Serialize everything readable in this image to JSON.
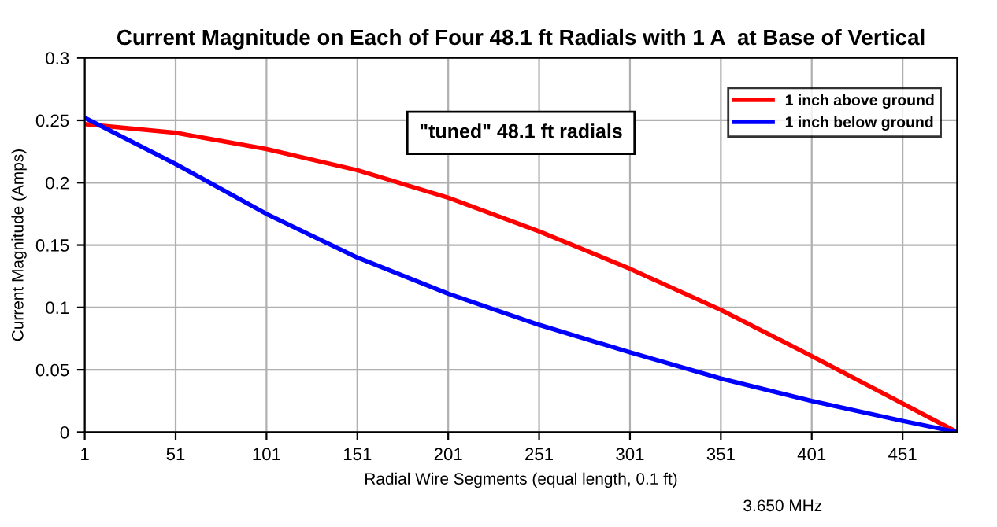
{
  "chart_data": {
    "type": "line",
    "title": "Current Magnitude on Each of Four 48.1 ft Radials with 1 A  at Base of Vertical",
    "xlabel": "Radial Wire Segments (equal length, 0.1 ft)",
    "ylabel": "Current Magnitude (Amps)",
    "x": [
      1,
      51,
      101,
      151,
      201,
      251,
      301,
      351,
      401,
      451,
      481
    ],
    "series": [
      {
        "name": "1 inch above ground",
        "color": "#ff0000",
        "values": [
          0.247,
          0.24,
          0.227,
          0.21,
          0.188,
          0.161,
          0.131,
          0.098,
          0.061,
          0.023,
          0
        ]
      },
      {
        "name": "1 inch below ground",
        "color": "#0000ff",
        "values": [
          0.252,
          0.215,
          0.175,
          0.14,
          0.111,
          0.086,
          0.064,
          0.043,
          0.025,
          0.009,
          0
        ]
      }
    ],
    "xlim": [
      1,
      481
    ],
    "xticks": [
      1,
      51,
      101,
      151,
      201,
      251,
      301,
      351,
      401,
      451
    ],
    "ylim": [
      0,
      0.3
    ],
    "yticks": [
      0,
      0.05,
      0.1,
      0.15,
      0.2,
      0.25,
      0.3
    ],
    "annotations": [
      "\"tuned\" 48.1 ft radials",
      "3.650 MHz"
    ],
    "grid": true,
    "legend": "top right",
    "marker": "none",
    "line_style": "solid"
  }
}
